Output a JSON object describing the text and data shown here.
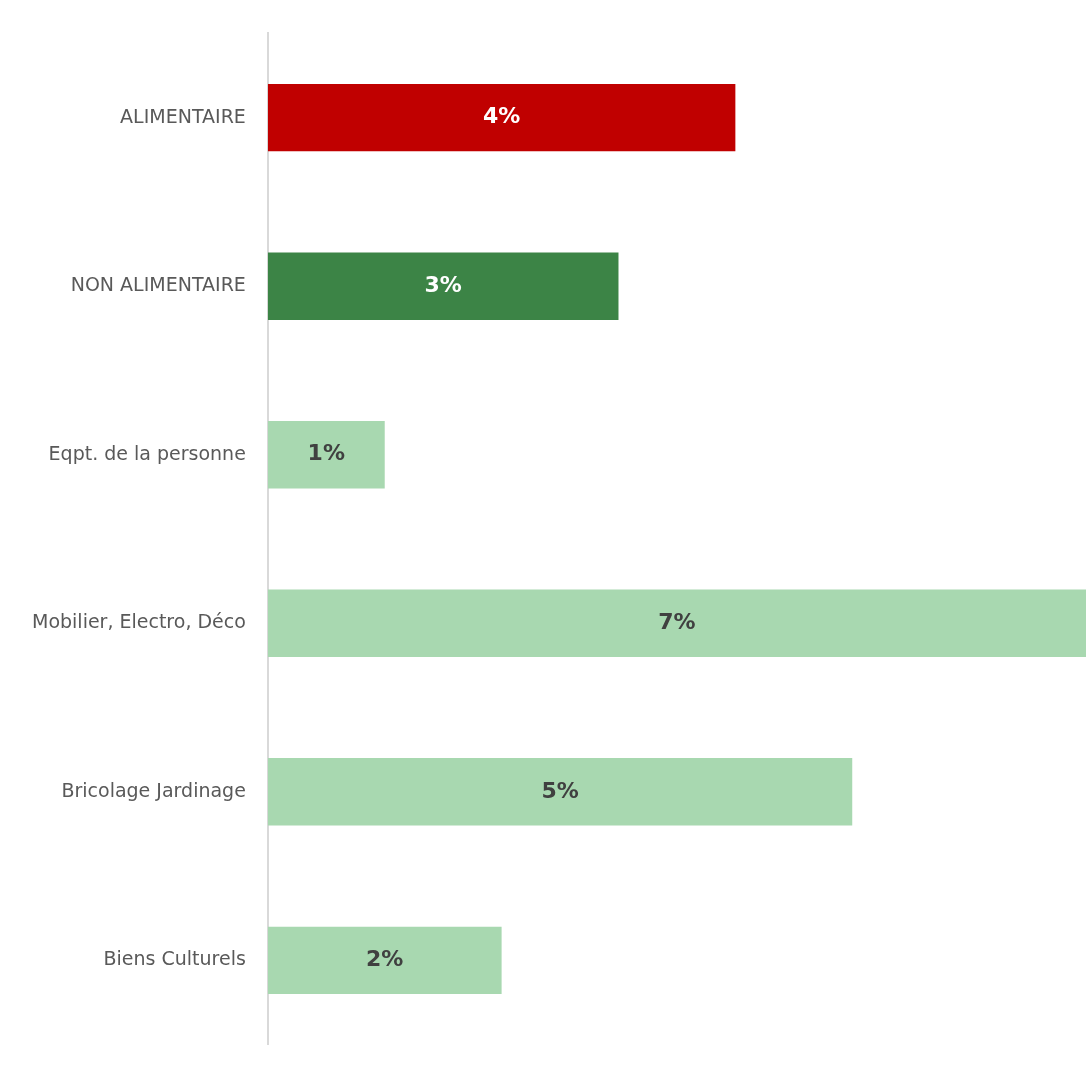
{
  "chart_data": {
    "type": "bar",
    "orientation": "horizontal",
    "categories": [
      "ALIMENTAIRE",
      "NON ALIMENTAIRE",
      "Eqpt. de la personne",
      "Mobilier, Electro, Déco",
      "Bricolage Jardinage",
      "Biens Culturels"
    ],
    "values": [
      4,
      3,
      1,
      7,
      5,
      2
    ],
    "colors": [
      "#c00000",
      "#3c8446",
      "#a8d8b0",
      "#a8d8b0",
      "#a8d8b0",
      "#a8d8b0"
    ],
    "value_labels": [
      "4%",
      "3%",
      "1%",
      "7%",
      "5%",
      "2%"
    ],
    "grid": false,
    "legend": false,
    "tick_labels": "y"
  }
}
